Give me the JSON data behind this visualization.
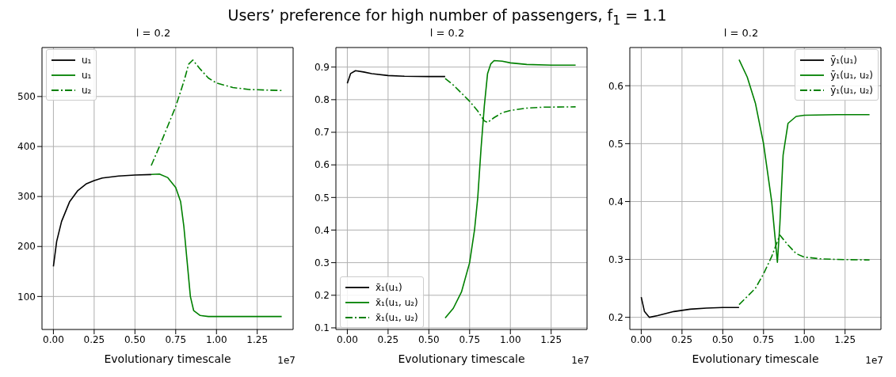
{
  "chart_data": [
    {
      "type": "line",
      "title": "l = 0.2",
      "xlabel": "Evolutionary timescale",
      "annotations": [
        "1e7"
      ],
      "xlim": [
        -0.07,
        1.47
      ],
      "xticks": [
        {
          "value": 0,
          "label": "0.00"
        },
        {
          "value": 0.25,
          "label": "0.25"
        },
        {
          "value": 0.5,
          "label": "0.50"
        },
        {
          "value": 0.75,
          "label": "0.75"
        },
        {
          "value": 1,
          "label": "1.00"
        },
        {
          "value": 1.25,
          "label": "1.25"
        }
      ],
      "ylim": [
        34,
        598
      ],
      "yticks": [
        100,
        200,
        300,
        400,
        500
      ],
      "grid": true,
      "legend": "top left",
      "series": [
        {
          "name": "u₁",
          "color": "#000000",
          "line_style": "solid",
          "x": [
            0,
            0.02,
            0.05,
            0.1,
            0.15,
            0.2,
            0.25,
            0.3,
            0.4,
            0.5,
            0.6
          ],
          "values": [
            160,
            210,
            250,
            290,
            312,
            325,
            332,
            337,
            341,
            343,
            344
          ]
        },
        {
          "name": "u₁",
          "color": "#008000",
          "line_style": "solid",
          "x": [
            0.6,
            0.65,
            0.7,
            0.75,
            0.78,
            0.8,
            0.82,
            0.84,
            0.86,
            0.9,
            0.95,
            1.0,
            1.4
          ],
          "values": [
            344,
            345,
            338,
            318,
            290,
            240,
            170,
            100,
            72,
            62,
            60,
            60,
            60
          ]
        },
        {
          "name": "u₂",
          "color": "#008000",
          "line_style": "dashdot",
          "x": [
            0.6,
            0.65,
            0.7,
            0.75,
            0.8,
            0.83,
            0.855,
            0.9,
            0.95,
            1.0,
            1.1,
            1.2,
            1.3,
            1.4
          ],
          "values": [
            362,
            400,
            440,
            480,
            530,
            565,
            573,
            555,
            537,
            527,
            518,
            514,
            513,
            512
          ]
        }
      ]
    },
    {
      "type": "line",
      "title": "Users’ preference for high number of passengers, f$_{1}$ = 1.1",
      "subtitle": "l = 0.2",
      "xlabel": "Evolutionary timescale",
      "annotations": [
        "1e7"
      ],
      "xlim": [
        -0.07,
        1.47
      ],
      "xticks": [
        {
          "value": 0,
          "label": "0.00"
        },
        {
          "value": 0.25,
          "label": "0.25"
        },
        {
          "value": 0.5,
          "label": "0.50"
        },
        {
          "value": 0.75,
          "label": "0.75"
        },
        {
          "value": 1,
          "label": "1.00"
        },
        {
          "value": 1.25,
          "label": "1.25"
        }
      ],
      "ylim": [
        0.095,
        0.96
      ],
      "yticks": [
        0.1,
        0.2,
        0.3,
        0.4,
        0.5,
        0.6,
        0.7,
        0.8,
        0.9
      ],
      "grid": true,
      "legend": "bottom left",
      "series": [
        {
          "name": "x̄₁(u₁)",
          "color": "#000000",
          "line_style": "solid",
          "x": [
            0,
            0.02,
            0.05,
            0.1,
            0.15,
            0.25,
            0.35,
            0.5,
            0.6
          ],
          "values": [
            0.85,
            0.88,
            0.889,
            0.885,
            0.88,
            0.874,
            0.872,
            0.871,
            0.871
          ]
        },
        {
          "name": "x̄₁(u₁, u₂)",
          "color": "#008000",
          "line_style": "solid",
          "x": [
            0.6,
            0.65,
            0.7,
            0.75,
            0.78,
            0.8,
            0.82,
            0.84,
            0.86,
            0.88,
            0.9,
            0.95,
            1.0,
            1.1,
            1.25,
            1.4
          ],
          "values": [
            0.13,
            0.16,
            0.21,
            0.3,
            0.4,
            0.5,
            0.65,
            0.78,
            0.88,
            0.91,
            0.92,
            0.918,
            0.913,
            0.908,
            0.906,
            0.906
          ]
        },
        {
          "name": "x̄₁(u₁, u₂)",
          "color": "#008000",
          "line_style": "dashdot",
          "x": [
            0.6,
            0.65,
            0.7,
            0.75,
            0.8,
            0.84,
            0.86,
            0.9,
            0.95,
            1.0,
            1.1,
            1.2,
            1.4
          ],
          "values": [
            0.865,
            0.845,
            0.82,
            0.795,
            0.765,
            0.735,
            0.73,
            0.745,
            0.76,
            0.767,
            0.774,
            0.777,
            0.778
          ]
        }
      ]
    },
    {
      "type": "line",
      "title": "l = 0.2",
      "xlabel": "Evolutionary timescale",
      "annotations": [
        "1e7"
      ],
      "xlim": [
        -0.07,
        1.47
      ],
      "xticks": [
        {
          "value": 0,
          "label": "0.00"
        },
        {
          "value": 0.25,
          "label": "0.25"
        },
        {
          "value": 0.5,
          "label": "0.50"
        },
        {
          "value": 0.75,
          "label": "0.75"
        },
        {
          "value": 1,
          "label": "1.00"
        },
        {
          "value": 1.25,
          "label": "1.25"
        }
      ],
      "ylim": [
        0.179,
        0.666
      ],
      "yticks": [
        0.2,
        0.3,
        0.4,
        0.5,
        0.6
      ],
      "grid": true,
      "legend": "top right",
      "series": [
        {
          "name": "ȳ₁(u₁)",
          "color": "#000000",
          "line_style": "solid",
          "x": [
            0,
            0.02,
            0.05,
            0.1,
            0.2,
            0.3,
            0.4,
            0.5,
            0.6
          ],
          "values": [
            0.235,
            0.21,
            0.2,
            0.203,
            0.21,
            0.214,
            0.216,
            0.217,
            0.217
          ]
        },
        {
          "name": "ȳ₁(u₁, u₂)",
          "color": "#008000",
          "line_style": "solid",
          "x": [
            0.6,
            0.65,
            0.7,
            0.75,
            0.8,
            0.82,
            0.835,
            0.85,
            0.87,
            0.9,
            0.95,
            1.0,
            1.2,
            1.4
          ],
          "values": [
            0.645,
            0.615,
            0.57,
            0.5,
            0.4,
            0.34,
            0.295,
            0.36,
            0.48,
            0.535,
            0.547,
            0.549,
            0.55,
            0.55
          ]
        },
        {
          "name": "ȳ₁(u₁, u₂)",
          "color": "#008000",
          "line_style": "dashdot",
          "x": [
            0.6,
            0.7,
            0.75,
            0.8,
            0.85,
            0.9,
            0.95,
            1.0,
            1.1,
            1.2,
            1.4
          ],
          "values": [
            0.222,
            0.25,
            0.275,
            0.305,
            0.342,
            0.325,
            0.31,
            0.304,
            0.301,
            0.3,
            0.299
          ]
        }
      ]
    }
  ]
}
